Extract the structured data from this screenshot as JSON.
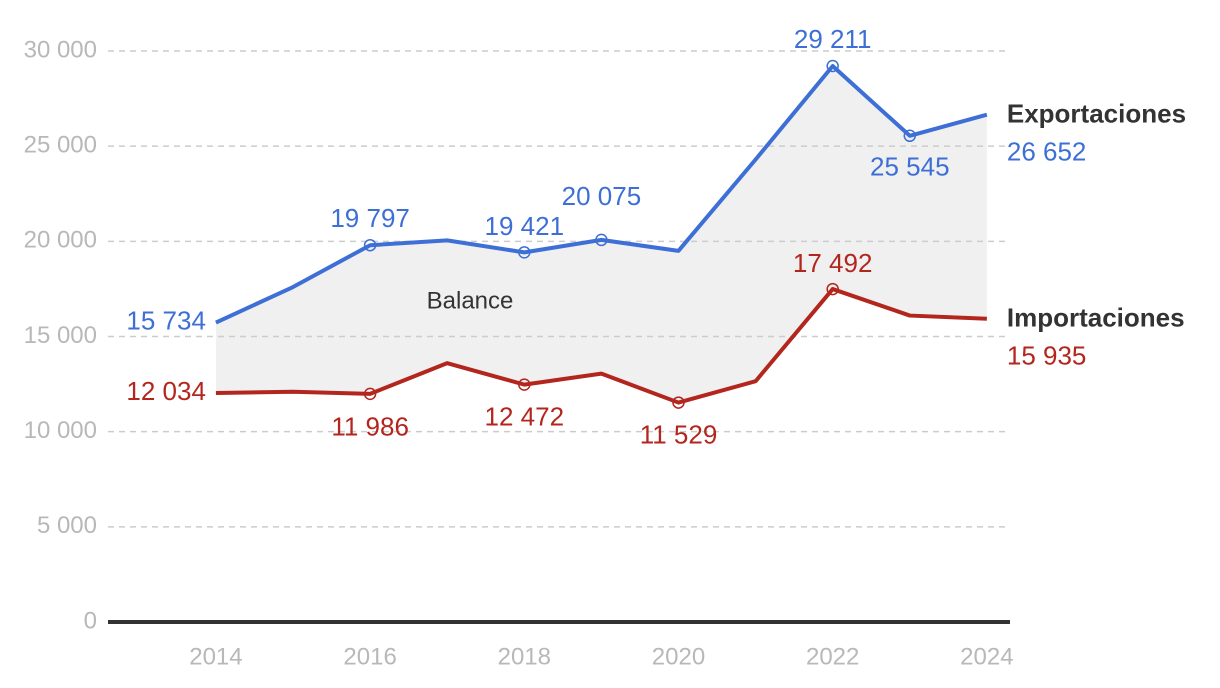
{
  "chart_data": {
    "type": "line",
    "x": [
      2014,
      2015,
      2016,
      2017,
      2018,
      2019,
      2020,
      2021,
      2022,
      2023,
      2024
    ],
    "series": [
      {
        "name": "Exportaciones",
        "color": "#3d6fd6",
        "values": [
          15734,
          17600,
          19797,
          20050,
          19421,
          20075,
          19500,
          24300,
          29211,
          25545,
          26652
        ],
        "value_labels": [
          "15 734",
          null,
          "19 797",
          null,
          "19 421",
          "20 075",
          null,
          null,
          "29 211",
          "25 545",
          "26 652"
        ]
      },
      {
        "name": "Importaciones",
        "color": "#b3261e",
        "values": [
          12034,
          12100,
          11986,
          13600,
          12472,
          13050,
          11529,
          12650,
          17492,
          16100,
          15935
        ],
        "value_labels": [
          "12 034",
          null,
          "11 986",
          null,
          "12 472",
          null,
          "11 529",
          null,
          "17 492",
          null,
          "15 935"
        ]
      }
    ],
    "annotation": "Balance",
    "area_color": "#f0f0f0",
    "xlim": [
      2012.6,
      2024.3
    ],
    "xticks": [
      2014,
      2016,
      2018,
      2020,
      2022,
      2024
    ],
    "ylim": [
      0,
      30000
    ],
    "yticks": [
      0,
      {
        "value": 5000,
        "label": "5 000"
      },
      {
        "value": 10000,
        "label": "10 000"
      },
      {
        "value": 15000,
        "label": "15 000"
      },
      {
        "value": 20000,
        "label": "20 000"
      },
      {
        "value": 25000,
        "label": "25 000"
      },
      {
        "value": 30000,
        "label": "30 000"
      }
    ],
    "grid": true
  }
}
